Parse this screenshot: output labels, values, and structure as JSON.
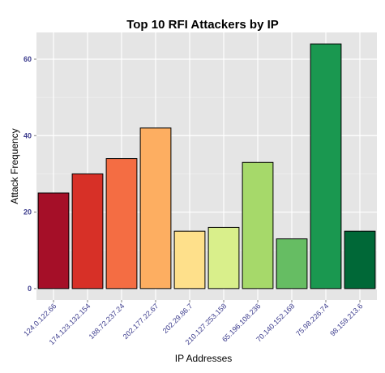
{
  "chart_data": {
    "type": "bar",
    "title": "Top 10 RFI Attackers by IP",
    "xlabel": "IP Addresses",
    "ylabel": "Attack Frequency",
    "categories": [
      "124.0.122.66",
      "174.123.132.154",
      "188.72.237.24",
      "202.177.22.67",
      "202.29.86.7",
      "210.127.253.158",
      "65.196.108.236",
      "70.140.152.168",
      "75.98.226.74",
      "98.159.213.6"
    ],
    "values": [
      25,
      30,
      34,
      42,
      15,
      16,
      33,
      13,
      64,
      15
    ],
    "colors": [
      "#a50f28",
      "#d73027",
      "#f46d43",
      "#fdae61",
      "#fee08b",
      "#d9ef8b",
      "#a6d96a",
      "#66bd63",
      "#1a9850",
      "#006837"
    ],
    "ylim": [
      -3,
      67
    ],
    "yticks": [
      0,
      20,
      40,
      60
    ],
    "grid": true,
    "legend": "none"
  }
}
